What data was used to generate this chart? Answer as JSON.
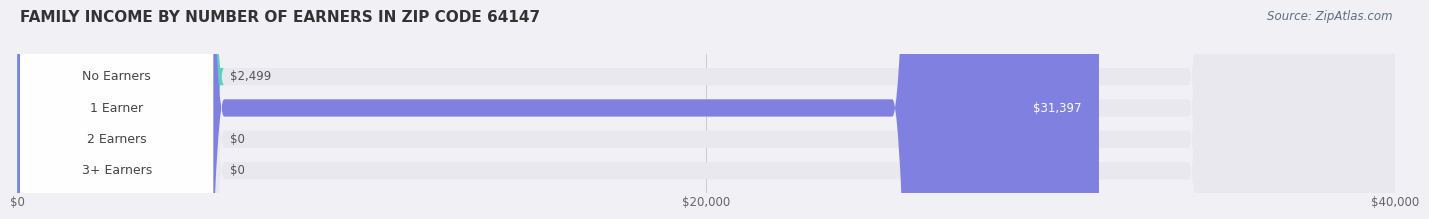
{
  "title": "FAMILY INCOME BY NUMBER OF EARNERS IN ZIP CODE 64147",
  "source": "Source: ZipAtlas.com",
  "categories": [
    "No Earners",
    "1 Earner",
    "2 Earners",
    "3+ Earners"
  ],
  "values": [
    2499,
    31397,
    0,
    0
  ],
  "bar_colors": [
    "#5ecfbf",
    "#8080e0",
    "#f4a0b8",
    "#f5c896"
  ],
  "label_colors": [
    "#333333",
    "#ffffff",
    "#333333",
    "#333333"
  ],
  "value_labels": [
    "$2,499",
    "$31,397",
    "$0",
    "$0"
  ],
  "xlim": [
    0,
    40000
  ],
  "xticks": [
    0,
    20000,
    40000
  ],
  "xtick_labels": [
    "$0",
    "$20,000",
    "$40,000"
  ],
  "bar_height": 0.55,
  "background_color": "#f0f0f5",
  "bar_bg_color": "#e8e8ee",
  "title_fontsize": 11,
  "source_fontsize": 8.5,
  "label_fontsize": 9,
  "value_fontsize": 8.5,
  "tick_fontsize": 8.5
}
